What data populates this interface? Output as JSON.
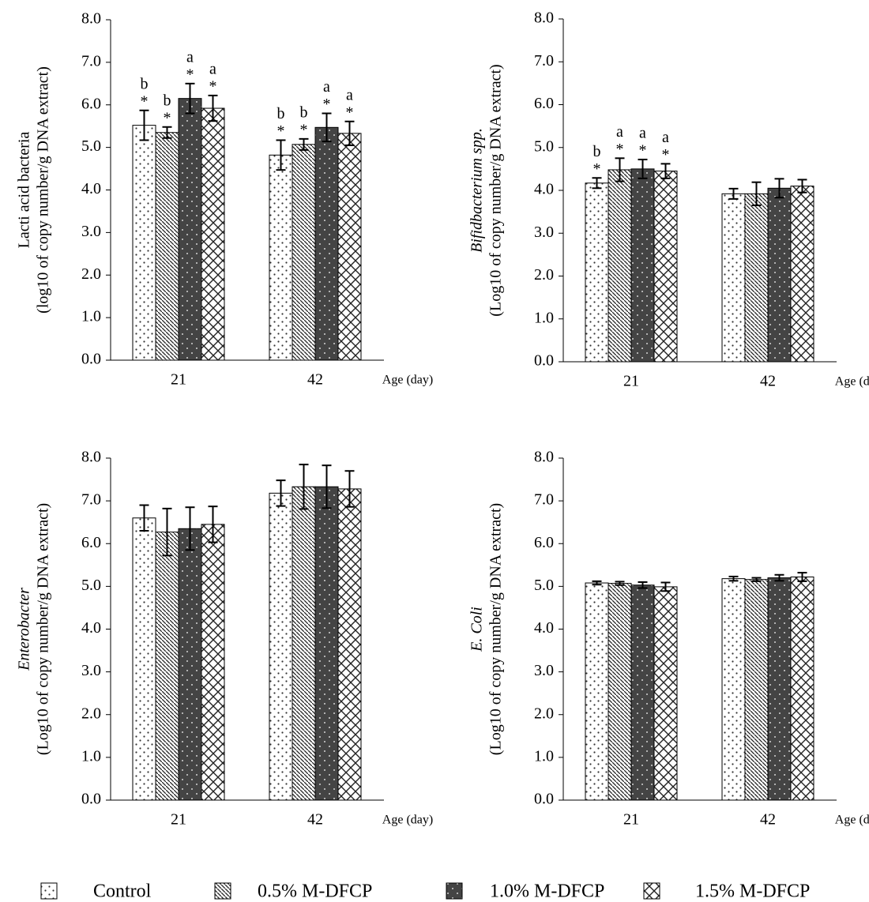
{
  "chart_data": [
    {
      "type": "bar",
      "y_label": [
        "Lacti acid bacteria",
        "(log10 of copy number/g DNA extract)"
      ],
      "y_label_italic": false,
      "x_label": "Age (day)",
      "categories": [
        "21",
        "42"
      ],
      "ylim": [
        0,
        8
      ],
      "yticks": [
        {
          "value": 0,
          "label": "0.0"
        },
        {
          "value": 1,
          "label": "1.0"
        },
        {
          "value": 2,
          "label": "2.0"
        },
        {
          "value": 3,
          "label": "3.0"
        },
        {
          "value": 4,
          "label": "4.0"
        },
        {
          "value": 5,
          "label": "5.0"
        },
        {
          "value": 6,
          "label": "6.0"
        },
        {
          "value": 7,
          "label": "7.0"
        },
        {
          "value": 8,
          "label": "8.0"
        }
      ],
      "series": [
        {
          "values": [
            5.52,
            4.82
          ],
          "errors": [
            0.35,
            0.35
          ],
          "letters": [
            "b",
            "b"
          ],
          "stars": [
            "*",
            "*"
          ]
        },
        {
          "values": [
            5.35,
            5.07
          ],
          "errors": [
            0.13,
            0.13
          ],
          "letters": [
            "b",
            "b"
          ],
          "stars": [
            "*",
            "*"
          ]
        },
        {
          "values": [
            6.15,
            5.47
          ],
          "errors": [
            0.35,
            0.33
          ],
          "letters": [
            "a",
            "a"
          ],
          "stars": [
            "*",
            "*"
          ]
        },
        {
          "values": [
            5.92,
            5.33
          ],
          "errors": [
            0.3,
            0.28
          ],
          "letters": [
            "a",
            "a"
          ],
          "stars": [
            "*",
            "*"
          ]
        }
      ]
    },
    {
      "type": "bar",
      "y_label": [
        "Bifidbacterium spp.",
        "(Log10 of copy number/g DNA extract)"
      ],
      "y_label_italic": true,
      "x_label": "Age (day)",
      "categories": [
        "21",
        "42"
      ],
      "ylim": [
        0,
        8
      ],
      "yticks": [
        {
          "value": 0,
          "label": "0.0"
        },
        {
          "value": 1,
          "label": "1.0"
        },
        {
          "value": 2,
          "label": "2.0"
        },
        {
          "value": 3,
          "label": "3.0"
        },
        {
          "value": 4,
          "label": "4.0"
        },
        {
          "value": 5,
          "label": "5.0"
        },
        {
          "value": 6,
          "label": "6.0"
        },
        {
          "value": 7,
          "label": "7.0"
        },
        {
          "value": 8,
          "label": "8.0"
        }
      ],
      "series": [
        {
          "values": [
            4.17,
            3.92
          ],
          "errors": [
            0.12,
            0.12
          ],
          "letters": [
            "b",
            null
          ],
          "stars": [
            "*",
            null
          ]
        },
        {
          "values": [
            4.48,
            3.92
          ],
          "errors": [
            0.27,
            0.27
          ],
          "letters": [
            "a",
            null
          ],
          "stars": [
            "*",
            null
          ]
        },
        {
          "values": [
            4.5,
            4.05
          ],
          "errors": [
            0.22,
            0.22
          ],
          "letters": [
            "a",
            null
          ],
          "stars": [
            "*",
            null
          ]
        },
        {
          "values": [
            4.45,
            4.1
          ],
          "errors": [
            0.17,
            0.15
          ],
          "letters": [
            "a",
            null
          ],
          "stars": [
            "*",
            null
          ]
        }
      ]
    },
    {
      "type": "bar",
      "y_label": [
        "Enterobacter",
        "(Log10 of copy number/g DNA extract)"
      ],
      "y_label_italic": true,
      "x_label": "Age (day)",
      "categories": [
        "21",
        "42"
      ],
      "ylim": [
        0,
        8
      ],
      "yticks": [
        {
          "value": 0,
          "label": "0.0"
        },
        {
          "value": 1,
          "label": "1.0"
        },
        {
          "value": 2,
          "label": "2.0"
        },
        {
          "value": 3,
          "label": "3.0"
        },
        {
          "value": 4,
          "label": "4.0"
        },
        {
          "value": 5,
          "label": "5.0"
        },
        {
          "value": 6,
          "label": "6.0"
        },
        {
          "value": 7,
          "label": "7.0"
        },
        {
          "value": 8,
          "label": "8.0"
        }
      ],
      "series": [
        {
          "values": [
            6.6,
            7.18
          ],
          "errors": [
            0.3,
            0.3
          ]
        },
        {
          "values": [
            6.27,
            7.33
          ],
          "errors": [
            0.55,
            0.52
          ]
        },
        {
          "values": [
            6.35,
            7.33
          ],
          "errors": [
            0.5,
            0.5
          ]
        },
        {
          "values": [
            6.45,
            7.28
          ],
          "errors": [
            0.42,
            0.42
          ]
        }
      ]
    },
    {
      "type": "bar",
      "y_label": [
        "E. Coli",
        "(Log10 of copy number/g DNA extract)"
      ],
      "y_label_italic": true,
      "x_label": "Age (day)",
      "categories": [
        "21",
        "42"
      ],
      "ylim": [
        0,
        8
      ],
      "yticks": [
        {
          "value": 0,
          "label": "0.0"
        },
        {
          "value": 1,
          "label": "1.0"
        },
        {
          "value": 2,
          "label": "2.0"
        },
        {
          "value": 3,
          "label": "3.0"
        },
        {
          "value": 4,
          "label": "4.0"
        },
        {
          "value": 5,
          "label": "5.0"
        },
        {
          "value": 6,
          "label": "6.0"
        },
        {
          "value": 7,
          "label": "7.0"
        },
        {
          "value": 8,
          "label": "8.0"
        }
      ],
      "series": [
        {
          "values": [
            5.08,
            5.18
          ],
          "errors": [
            0.04,
            0.05
          ]
        },
        {
          "values": [
            5.07,
            5.16
          ],
          "errors": [
            0.04,
            0.04
          ]
        },
        {
          "values": [
            5.03,
            5.2
          ],
          "errors": [
            0.07,
            0.07
          ]
        },
        {
          "values": [
            4.99,
            5.22
          ],
          "errors": [
            0.1,
            0.1
          ]
        }
      ]
    }
  ],
  "legend": [
    {
      "name": "Control",
      "pattern": "dots"
    },
    {
      "name": "0.5% M-DFCP",
      "pattern": "lines"
    },
    {
      "name": "1.0% M-DFCP",
      "pattern": "dark"
    },
    {
      "name": "1.5% M-DFCP",
      "pattern": "cross"
    }
  ]
}
